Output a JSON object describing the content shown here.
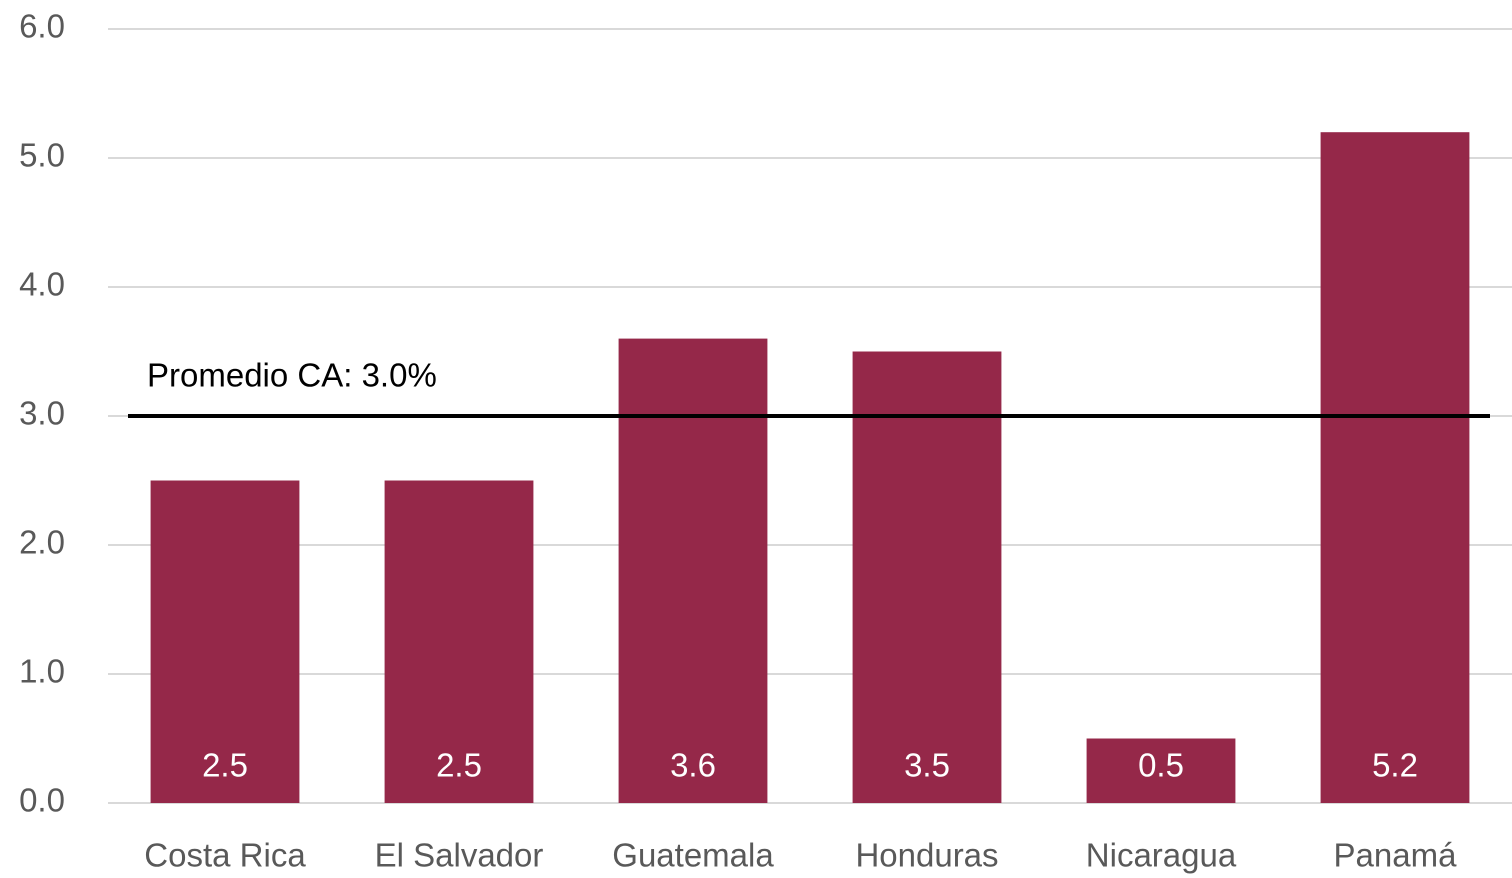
{
  "chart_data": {
    "type": "bar",
    "categories": [
      "Costa Rica",
      "El Salvador",
      "Guatemala",
      "Honduras",
      "Nicaragua",
      "Panamá"
    ],
    "values": [
      2.5,
      2.5,
      3.6,
      3.5,
      0.5,
      5.2
    ],
    "color": "#952849",
    "ylim": [
      0,
      6
    ],
    "yticks": [
      {
        "value": 0,
        "label": "0.0"
      },
      {
        "value": 1,
        "label": "1.0"
      },
      {
        "value": 2,
        "label": "2.0"
      },
      {
        "value": 3,
        "label": "3.0"
      },
      {
        "value": 4,
        "label": "4.0"
      },
      {
        "value": 5,
        "label": "5.0"
      },
      {
        "value": 6,
        "label": "6.0"
      }
    ],
    "grid": true,
    "reference_line": {
      "value": 3.0,
      "label": "Promedio CA: 3.0%"
    }
  }
}
